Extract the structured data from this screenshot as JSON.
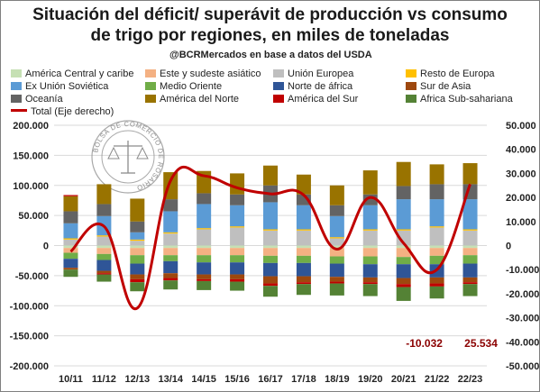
{
  "title_line1": "Situación del déficit/ superávit de producción vs consumo",
  "title_line2": "de trigo por regiones, en miles de toneladas",
  "subtitle": "@BCRMercados  en base a datos del USDA",
  "watermark_text": "BOLSA DE COMERCIO DE ROSARIO",
  "chart_data": {
    "type": "bar",
    "stacked": true,
    "categories": [
      "10/11",
      "11/12",
      "12/13",
      "13/14",
      "14/15",
      "15/16",
      "16/17",
      "17/18",
      "18/19",
      "19/20",
      "20/21",
      "21/22",
      "22/23"
    ],
    "ylim_left": [
      -200000,
      200000
    ],
    "ylim_right": [
      -50000,
      50000
    ],
    "left_ticks": [
      "200.000",
      "150.000",
      "100.000",
      "50.000",
      "0",
      "-50.000",
      "-100.000",
      "-150.000",
      "-200.000"
    ],
    "right_ticks": [
      "50.000",
      "40.000",
      "30.000",
      "20.000",
      "10.000",
      "0",
      "-10.000",
      "-20.000",
      "-30.000",
      "-40.000",
      "-50.000"
    ],
    "grid": true,
    "series": [
      {
        "name": "América Central y caribe",
        "color": "#c6e0b4",
        "values": [
          -4000,
          -4000,
          -4000,
          -4000,
          -4000,
          -4000,
          -4000,
          -4000,
          -4000,
          -4000,
          -4000,
          -4000,
          -4000
        ]
      },
      {
        "name": "Este y sudeste asiático",
        "color": "#f4b183",
        "values": [
          -8000,
          -10000,
          -12000,
          -12000,
          -12000,
          -12000,
          -13000,
          -13000,
          -14000,
          -14000,
          -15000,
          -13000,
          -12000
        ]
      },
      {
        "name": "Unión Europea",
        "color": "#bfbfbf",
        "values": [
          10000,
          15000,
          8000,
          20000,
          27000,
          30000,
          25000,
          25000,
          12000,
          25000,
          25000,
          30000,
          25000
        ]
      },
      {
        "name": "Resto de Europa",
        "color": "#ffc000",
        "values": [
          2000,
          2000,
          2000,
          2000,
          2000,
          2000,
          2000,
          2000,
          2000,
          2000,
          2000,
          2000,
          2000
        ]
      },
      {
        "name": "Ex Unión Soviética",
        "color": "#5b9bd5",
        "values": [
          25000,
          32000,
          12000,
          35000,
          40000,
          35000,
          45000,
          40000,
          35000,
          40000,
          50000,
          45000,
          50000
        ]
      },
      {
        "name": "Medio Oriente",
        "color": "#70ad47",
        "values": [
          -10000,
          -10000,
          -14000,
          -10000,
          -12000,
          -12000,
          -12000,
          -12000,
          -12000,
          -13000,
          -12000,
          -14000,
          -14000
        ]
      },
      {
        "name": "Norte de África",
        "color": "#2f5597",
        "values": [
          -15000,
          -18000,
          -18000,
          -20000,
          -20000,
          -20000,
          -22000,
          -22000,
          -22000,
          -22000,
          -23000,
          -22000,
          -23000
        ]
      },
      {
        "name": "Sur de Asia",
        "color": "#9e480e",
        "values": [
          -3000,
          -4000,
          -8000,
          -8000,
          -8000,
          -8000,
          -12000,
          -10000,
          -8000,
          -8000,
          -10000,
          -10000,
          -8000
        ]
      },
      {
        "name": "Oceanía",
        "color": "#636363",
        "values": [
          20000,
          20000,
          18000,
          20000,
          18000,
          18000,
          28000,
          18000,
          18000,
          18000,
          22000,
          25000,
          25000
        ]
      },
      {
        "name": "América del Norte",
        "color": "#997300",
        "values": [
          25000,
          33000,
          38000,
          45000,
          37000,
          35000,
          33000,
          33000,
          33000,
          40000,
          40000,
          33000,
          35000
        ]
      },
      {
        "name": "América del Sur",
        "color": "#c00000",
        "values": [
          2000,
          -2000,
          -5000,
          -4000,
          -3000,
          -4000,
          -4000,
          -3000,
          -3000,
          -3000,
          -5000,
          -5000,
          -3000
        ]
      },
      {
        "name": "Africa Sub-sahariana",
        "color": "#548235",
        "values": [
          -12000,
          -12000,
          -15000,
          -15000,
          -15000,
          -15000,
          -18000,
          -18000,
          -20000,
          -20000,
          -23000,
          -20000,
          -20000
        ]
      }
    ],
    "line": {
      "name": "Total (Eje derecho)",
      "color": "#c00000",
      "axis": "right",
      "values": [
        -2500,
        8000,
        -26000,
        27000,
        29000,
        24000,
        21500,
        21000,
        -1500,
        20000,
        1000,
        -10032,
        25534
      ]
    },
    "annotations": [
      {
        "text": "-10.032",
        "category": "21/22"
      },
      {
        "text": "25.534",
        "category": "22/23"
      }
    ]
  },
  "legend": [
    {
      "label": "América Central y caribe",
      "color": "#c6e0b4"
    },
    {
      "label": "Este y sudeste asiático",
      "color": "#f4b183"
    },
    {
      "label": "Unión Europea",
      "color": "#bfbfbf"
    },
    {
      "label": "Resto de Europa",
      "color": "#ffc000"
    },
    {
      "label": "Ex Unión Soviética",
      "color": "#5b9bd5"
    },
    {
      "label": "Medio Oriente",
      "color": "#70ad47"
    },
    {
      "label": "Norte de áfrica",
      "color": "#2f5597"
    },
    {
      "label": "Sur de Asia",
      "color": "#9e480e"
    },
    {
      "label": "Oceanía",
      "color": "#636363"
    },
    {
      "label": "América del Norte",
      "color": "#997300"
    },
    {
      "label": "América del Sur",
      "color": "#c00000"
    },
    {
      "label": "Africa Sub-sahariana",
      "color": "#548235"
    },
    {
      "label": "Total (Eje derecho)",
      "color": "#c00000",
      "is_line": true
    }
  ]
}
